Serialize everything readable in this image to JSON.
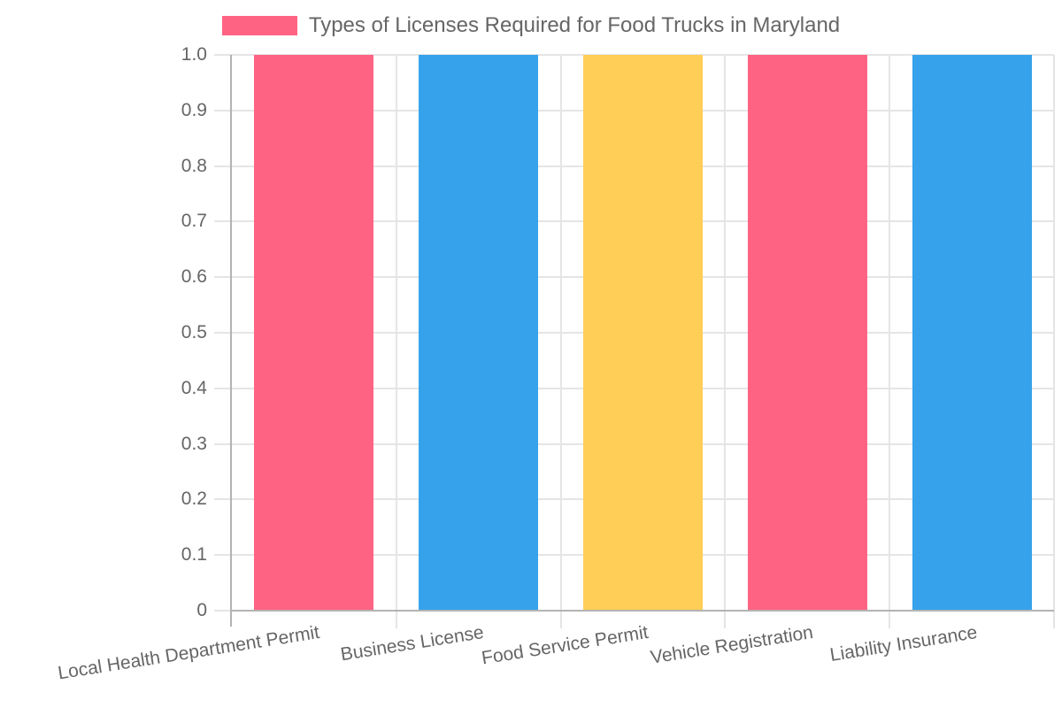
{
  "chart_data": {
    "type": "bar",
    "title": "Types of Licenses Required for Food Trucks in Maryland",
    "categories": [
      "Local Health Department Permit",
      "Business License",
      "Food Service Permit",
      "Vehicle Registration",
      "Liability Insurance"
    ],
    "values": [
      1,
      1,
      1,
      1,
      1
    ],
    "bar_colors": [
      "#ff6384",
      "#36a2eb",
      "#ffce56",
      "#ff6384",
      "#36a2eb"
    ],
    "xlabel": "",
    "ylabel": "",
    "ylim": [
      0,
      1
    ],
    "ytick_labels": [
      "0",
      "0.1",
      "0.2",
      "0.3",
      "0.4",
      "0.5",
      "0.6",
      "0.7",
      "0.8",
      "0.9",
      "1.0"
    ],
    "grid": true,
    "legend": {
      "label": "Types of Licenses Required for Food Trucks in Maryland",
      "color": "#ff6384",
      "position": "top"
    }
  },
  "colors": {
    "pink": "#ff6384",
    "blue": "#36a2eb",
    "yellow": "#ffce56",
    "grid": "#e5e5e5",
    "axis": "#b3b3b3",
    "text": "#666666",
    "background": "#ffffff"
  }
}
